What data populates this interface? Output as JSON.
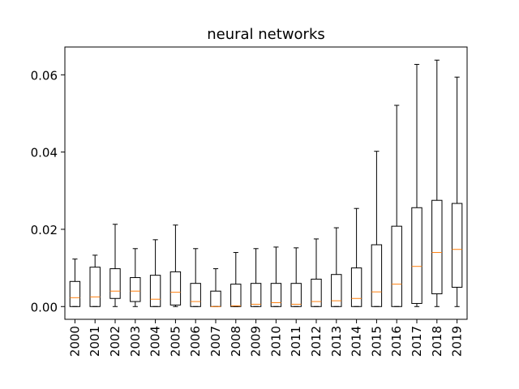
{
  "chart_data": {
    "type": "box",
    "title": "neural networks",
    "xlabel": "",
    "ylabel": "",
    "ylim": [
      -0.0033,
      0.0672
    ],
    "yticks": [
      0.0,
      0.02,
      0.04,
      0.06
    ],
    "ytick_labels": [
      "0.00",
      "0.02",
      "0.04",
      "0.06"
    ],
    "grid": false,
    "median_color": "#ff7f0e",
    "box_color": "#000000",
    "categories": [
      "2000",
      "2001",
      "2002",
      "2003",
      "2004",
      "2005",
      "2006",
      "2007",
      "2008",
      "2009",
      "2010",
      "2011",
      "2012",
      "2013",
      "2014",
      "2015",
      "2016",
      "2017",
      "2018",
      "2019"
    ],
    "boxes": [
      {
        "min": 0.0,
        "q1": 0.0,
        "median": 0.0023,
        "q3": 0.0065,
        "max": 0.0123
      },
      {
        "min": 0.0,
        "q1": 0.0,
        "median": 0.0025,
        "q3": 0.0102,
        "max": 0.0133
      },
      {
        "min": 0.0,
        "q1": 0.0021,
        "median": 0.004,
        "q3": 0.0098,
        "max": 0.0213
      },
      {
        "min": 0.0,
        "q1": 0.0013,
        "median": 0.004,
        "q3": 0.0075,
        "max": 0.015
      },
      {
        "min": 0.0,
        "q1": 0.0,
        "median": 0.0019,
        "q3": 0.0081,
        "max": 0.0173
      },
      {
        "min": 0.0,
        "q1": 0.0004,
        "median": 0.0037,
        "q3": 0.009,
        "max": 0.0211
      },
      {
        "min": 0.0,
        "q1": 0.0,
        "median": 0.0013,
        "q3": 0.006,
        "max": 0.015
      },
      {
        "min": 0.0,
        "q1": 0.0,
        "median": 0.0,
        "q3": 0.004,
        "max": 0.0098
      },
      {
        "min": 0.0,
        "q1": 0.0,
        "median": 0.0002,
        "q3": 0.0058,
        "max": 0.014
      },
      {
        "min": 0.0,
        "q1": 0.0,
        "median": 0.0006,
        "q3": 0.006,
        "max": 0.015
      },
      {
        "min": 0.0,
        "q1": 0.0,
        "median": 0.001,
        "q3": 0.006,
        "max": 0.0154
      },
      {
        "min": 0.0,
        "q1": 0.0,
        "median": 0.0006,
        "q3": 0.006,
        "max": 0.0152
      },
      {
        "min": 0.0,
        "q1": 0.0,
        "median": 0.0013,
        "q3": 0.0071,
        "max": 0.0175
      },
      {
        "min": 0.0,
        "q1": 0.0,
        "median": 0.0015,
        "q3": 0.0083,
        "max": 0.0204
      },
      {
        "min": 0.0,
        "q1": 0.0,
        "median": 0.0021,
        "q3": 0.01,
        "max": 0.0254
      },
      {
        "min": 0.0,
        "q1": 0.0,
        "median": 0.0038,
        "q3": 0.016,
        "max": 0.0402
      },
      {
        "min": 0.0,
        "q1": 0.0,
        "median": 0.0058,
        "q3": 0.0208,
        "max": 0.0521
      },
      {
        "min": 0.0,
        "q1": 0.0008,
        "median": 0.0104,
        "q3": 0.0256,
        "max": 0.0627
      },
      {
        "min": 0.0,
        "q1": 0.0033,
        "median": 0.014,
        "q3": 0.0275,
        "max": 0.0638
      },
      {
        "min": 0.0,
        "q1": 0.005,
        "median": 0.0148,
        "q3": 0.0267,
        "max": 0.0594
      }
    ]
  }
}
